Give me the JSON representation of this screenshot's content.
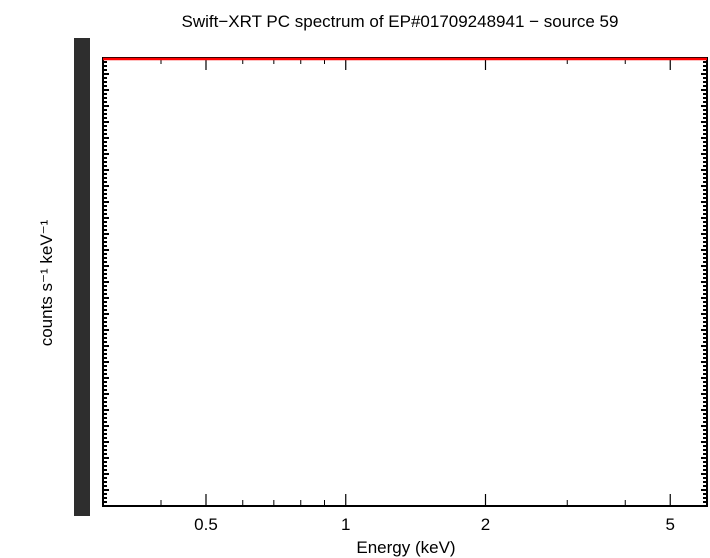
{
  "chart_data": {
    "type": "line",
    "title": "Swift−XRT PC spectrum of EP#01709248941 − source 59",
    "xlabel": "Energy (keV)",
    "ylabel": "counts s⁻¹ keV⁻¹",
    "x_scale": "log",
    "xlim": [
      0.3,
      6.0
    ],
    "x_ticks": [
      {
        "value": 0.5,
        "label": "0.5"
      },
      {
        "value": 1,
        "label": "1"
      },
      {
        "value": 2,
        "label": "2"
      },
      {
        "value": 5,
        "label": "5"
      }
    ],
    "y_scale": "log",
    "y_tick_labels_note": "overlapping, illegible",
    "series": [
      {
        "color": "#ff0000",
        "x": [
          0.3,
          6.0
        ],
        "y": [
          1,
          1
        ]
      }
    ],
    "grid": false,
    "colors": {
      "series": "#ff0000",
      "axes": "#000000"
    }
  }
}
